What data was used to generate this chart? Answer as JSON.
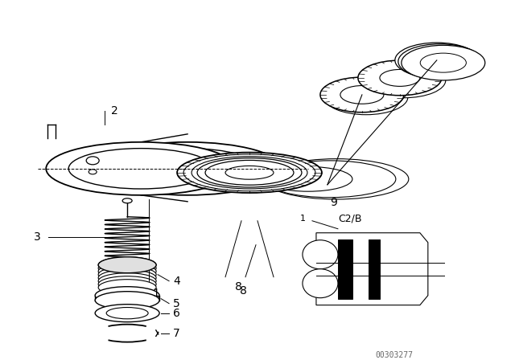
{
  "bg_color": "#ffffff",
  "line_color": "#000000",
  "fig_width": 6.4,
  "fig_height": 4.48,
  "dpi": 100,
  "watermark": "00303277",
  "inset_label": "C2/B",
  "inset_num": "1"
}
